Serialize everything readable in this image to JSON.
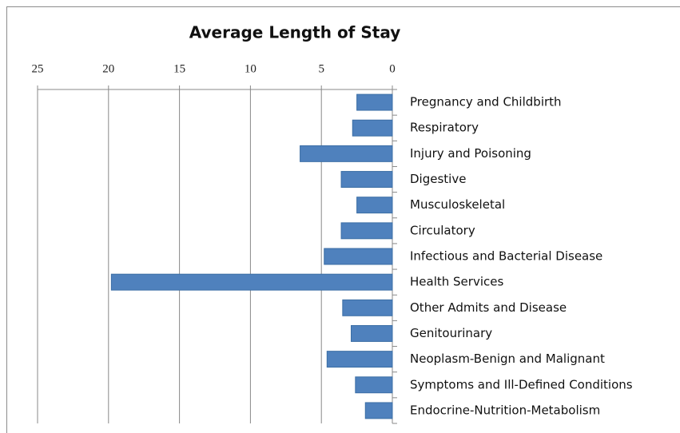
{
  "chart_data": {
    "type": "hbar",
    "title": "Average Length of Stay",
    "categories": [
      "Pregnancy and Childbirth",
      "Respiratory",
      "Injury and Poisoning",
      "Digestive",
      "Musculoskeletal",
      "Circulatory",
      "Infectious and Bacterial Disease",
      "Health Services",
      "Other Admits and Disease",
      "Genitourinary",
      "Neoplasm-Benign and Malignant",
      "Symptoms and Ill-Defined Conditions",
      "Endocrine-Nutrition-Metabolism"
    ],
    "values": [
      2.5,
      2.8,
      6.5,
      3.6,
      2.5,
      3.6,
      4.8,
      19.8,
      3.5,
      2.9,
      4.6,
      2.6,
      1.9
    ],
    "color": "#4f81bd",
    "xlim": [
      25,
      0
    ],
    "xticks": [
      25,
      20,
      15,
      10,
      5,
      0
    ],
    "grid": true
  }
}
